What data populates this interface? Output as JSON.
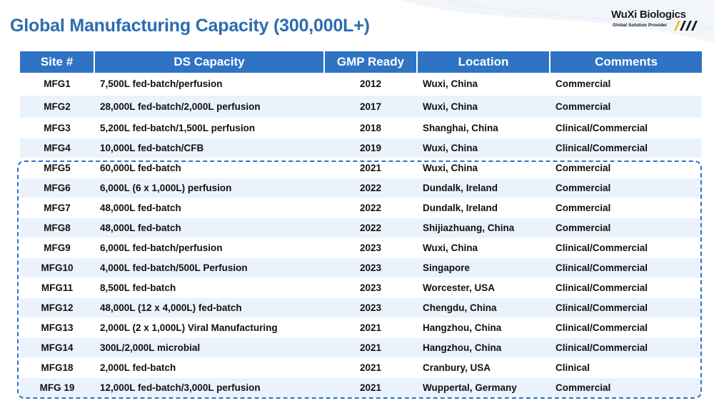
{
  "header": {
    "title": "Global Manufacturing Capacity (300,000L+)",
    "logo_name": "WuXi Biologics",
    "logo_tagline": "Global Solution Provider"
  },
  "colors": {
    "title": "#2b6cb0",
    "header_bg": "#2f74c4",
    "row_alt": "#eaf2fb",
    "dash_border": "#2f74c4"
  },
  "table": {
    "columns": [
      "Site #",
      "DS Capacity",
      "GMP Ready",
      "Location",
      "Comments"
    ],
    "rows": [
      {
        "site": "MFG1",
        "capacity": "7,500L fed-batch/perfusion",
        "gmp": "2012",
        "location": "Wuxi, China",
        "comments": "Commercial"
      },
      {
        "site": "MFG2",
        "capacity": "28,000L fed-batch/2,000L perfusion",
        "gmp": "2017",
        "location": "Wuxi, China",
        "comments": "Commercial"
      },
      {
        "site": "MFG3",
        "capacity": "5,200L fed-batch/1,500L perfusion",
        "gmp": "2018",
        "location": "Shanghai, China",
        "comments": "Clinical/Commercial"
      },
      {
        "site": "MFG4",
        "capacity": "10,000L fed-batch/CFB",
        "gmp": "2019",
        "location": "Wuxi, China",
        "comments": "Clinical/Commercial"
      },
      {
        "site": "MFG5",
        "capacity": "60,000L fed-batch",
        "gmp": "2021",
        "location": "Wuxi, China",
        "comments": "Commercial"
      },
      {
        "site": "MFG6",
        "capacity": "6,000L (6 x 1,000L) perfusion",
        "gmp": "2022",
        "location": "Dundalk, Ireland",
        "comments": "Commercial"
      },
      {
        "site": "MFG7",
        "capacity": "48,000L fed-batch",
        "gmp": "2022",
        "location": "Dundalk, Ireland",
        "comments": "Commercial"
      },
      {
        "site": "MFG8",
        "capacity": "48,000L fed-batch",
        "gmp": "2022",
        "location": "Shijiazhuang, China",
        "comments": "Commercial"
      },
      {
        "site": "MFG9",
        "capacity": "6,000L fed-batch/perfusion",
        "gmp": "2023",
        "location": "Wuxi, China",
        "comments": "Clinical/Commercial"
      },
      {
        "site": "MFG10",
        "capacity": "4,000L fed-batch/500L Perfusion",
        "gmp": "2023",
        "location": "Singapore",
        "comments": "Clinical/Commercial"
      },
      {
        "site": "MFG11",
        "capacity": "8,500L fed-batch",
        "gmp": "2023",
        "location": "Worcester, USA",
        "comments": "Clinical/Commercial"
      },
      {
        "site": "MFG12",
        "capacity": "48,000L (12 x 4,000L) fed-batch",
        "gmp": "2023",
        "location": "Chengdu, China",
        "comments": "Clinical/Commercial"
      },
      {
        "site": "MFG13",
        "capacity": "2,000L (2 x 1,000L) Viral Manufacturing",
        "gmp": "2021",
        "location": "Hangzhou, China",
        "comments": "Clinical/Commercial"
      },
      {
        "site": "MFG14",
        "capacity": "300L/2,000L microbial",
        "gmp": "2021",
        "location": "Hangzhou, China",
        "comments": "Clinical/Commercial"
      },
      {
        "site": "MFG18",
        "capacity": "2,000L fed-batch",
        "gmp": "2021",
        "location": "Cranbury, USA",
        "comments": "Clinical"
      },
      {
        "site": "MFG 19",
        "capacity": "12,000L fed-batch/3,000L perfusion",
        "gmp": "2021",
        "location": "Wuppertal, Germany",
        "comments": "Commercial"
      }
    ]
  }
}
